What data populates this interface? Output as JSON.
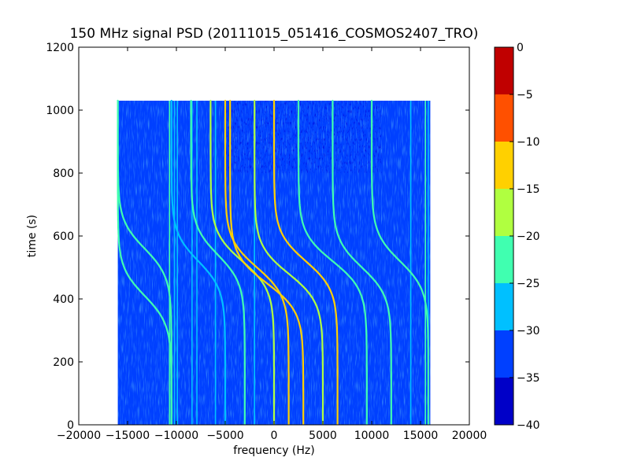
{
  "chart_data": {
    "type": "heatmap",
    "title": "150 MHz signal PSD (20111015_051416_COSMOS2407_TRO)",
    "xlabel": "frequency (Hz)",
    "ylabel": "time (s)",
    "xlim": [
      -20000,
      20000
    ],
    "ylim": [
      0,
      1200
    ],
    "x_ticks": [
      -20000,
      -15000,
      -10000,
      -5000,
      0,
      5000,
      10000,
      15000,
      20000
    ],
    "x_tick_labels": [
      "−20000",
      "−15000",
      "−10000",
      "−5000",
      "0",
      "5000",
      "10000",
      "15000",
      "20000"
    ],
    "y_ticks": [
      0,
      200,
      400,
      600,
      800,
      1000,
      1200
    ],
    "y_tick_labels": [
      "0",
      "200",
      "400",
      "600",
      "800",
      "1000",
      "1200"
    ],
    "data_extent": {
      "freq": [
        -16000,
        16000
      ],
      "time": [
        0,
        1030
      ]
    },
    "grid": false,
    "colorbar": {
      "levels": [
        -40,
        -35,
        -30,
        -25,
        -20,
        -15,
        -10,
        -5,
        0
      ],
      "tick_labels": [
        "−40",
        "−35",
        "−30",
        "−25",
        "−20",
        "−15",
        "−10",
        "−5",
        "0"
      ],
      "colors": [
        "#0000c8",
        "#0040ff",
        "#00c0ff",
        "#40ffb0",
        "#b0ff40",
        "#ffd000",
        "#ff5000",
        "#c00000"
      ]
    },
    "background_level_color": "#0040ff",
    "vertical_lines": [
      {
        "freq": -10700,
        "color": "#40ffb0"
      },
      {
        "freq": -10200,
        "color": "#00c0ff"
      },
      {
        "freq": -9900,
        "color": "#00c0ff"
      },
      {
        "freq": -8400,
        "color": "#00c0ff"
      },
      {
        "freq": -7900,
        "color": "#00c0ff"
      },
      {
        "freq": -6000,
        "color": "#00c0ff"
      },
      {
        "freq": -2000,
        "color": "#00c0ff"
      },
      {
        "freq": 14000,
        "color": "#00c0ff"
      },
      {
        "freq": 15500,
        "color": "#40ffb0"
      },
      {
        "freq": 15800,
        "color": "#00c0ff"
      }
    ],
    "doppler_tracks": [
      {
        "f_start": -16000,
        "f_end": -10500,
        "t_center": 410,
        "color": "#40ffb0"
      },
      {
        "f_start": -16000,
        "f_end": -10500,
        "t_center": 560,
        "color": "#40ffb0"
      },
      {
        "f_start": -10500,
        "f_end": -5000,
        "t_center": 520,
        "color": "#00c0ff"
      },
      {
        "f_start": -8500,
        "f_end": -3000,
        "t_center": 540,
        "color": "#40ffb0"
      },
      {
        "f_start": -6500,
        "f_end": 0,
        "t_center": 520,
        "color": "#b0ff40"
      },
      {
        "f_start": -5000,
        "f_end": 1500,
        "t_center": 500,
        "color": "#ffd000"
      },
      {
        "f_start": -4500,
        "f_end": 3000,
        "t_center": 450,
        "color": "#ffd000"
      },
      {
        "f_start": -2000,
        "f_end": 5000,
        "t_center": 480,
        "color": "#b0ff40"
      },
      {
        "f_start": 0,
        "f_end": 6500,
        "t_center": 520,
        "color": "#ffd000"
      },
      {
        "f_start": 2500,
        "f_end": 9500,
        "t_center": 520,
        "color": "#40ffb0"
      },
      {
        "f_start": 6000,
        "f_end": 12000,
        "t_center": 500,
        "color": "#40ffb0"
      },
      {
        "f_start": 10000,
        "f_end": 15800,
        "t_center": 520,
        "color": "#40ffb0"
      }
    ]
  }
}
